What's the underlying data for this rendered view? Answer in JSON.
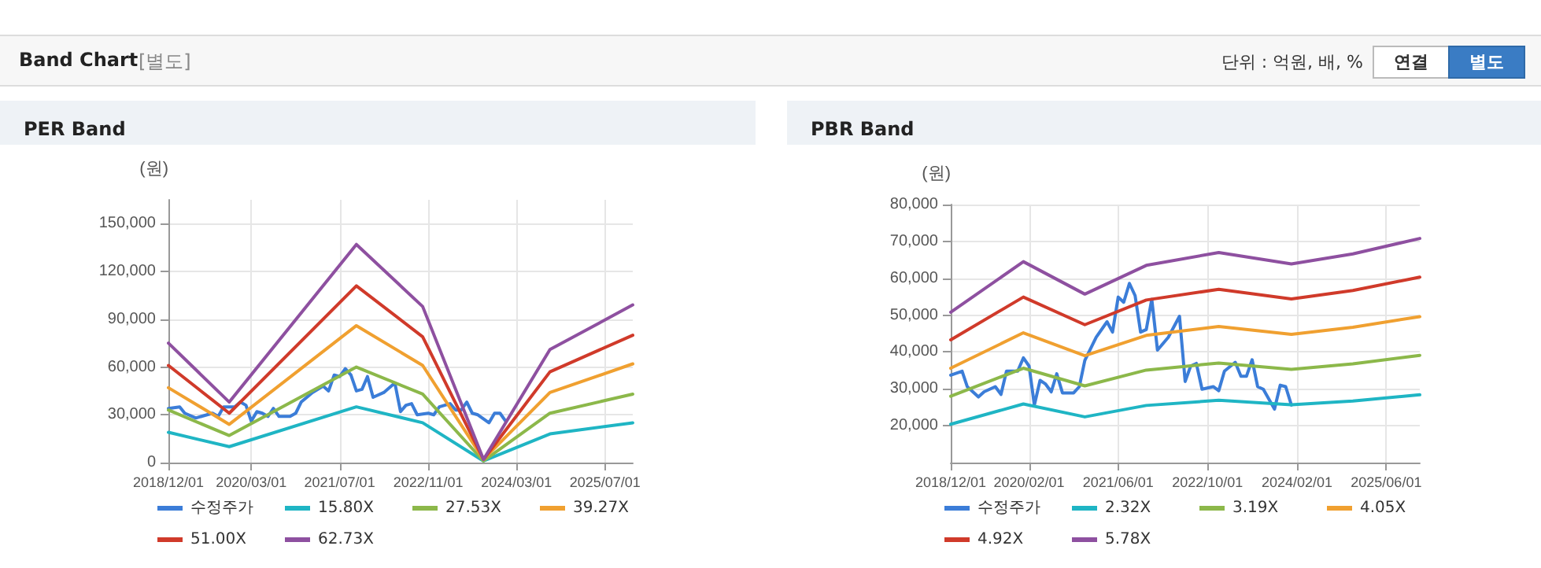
{
  "chart_data": [
    {
      "type": "line",
      "title": "PER Band",
      "ylabel": "(원)",
      "annotations": [
        "Band Chart",
        "[별도]",
        "단위 : 억원, 배, %",
        "연결",
        "별도"
      ],
      "xlim": [
        "2018-12-01",
        "2025-12-01"
      ],
      "xticks": [
        {
          "value": "2018-12-01",
          "label": "2018/12/01"
        },
        {
          "value": "2020-03-01",
          "label": "2020/03/01"
        },
        {
          "value": "2021-07-01",
          "label": "2021/07/01"
        },
        {
          "value": "2022-11-01",
          "label": "2022/11/01"
        },
        {
          "value": "2024-03-01",
          "label": "2024/03/01"
        },
        {
          "value": "2025-07-01",
          "label": "2025/07/01"
        }
      ],
      "ylim": [
        0,
        165000
      ],
      "yticks": [
        0,
        {
          "value": 30000,
          "label": "30,000"
        },
        {
          "value": 60000,
          "label": "60,000"
        },
        {
          "value": 90000,
          "label": "90,000"
        },
        {
          "value": 120000,
          "label": "120,000"
        },
        {
          "value": 150000,
          "label": "150,000"
        }
      ],
      "grid": true,
      "legend": "bottom",
      "series": [
        {
          "name": "수정주가",
          "color": "#3b7dd8",
          "x": [
            "2018-12",
            "2019-02",
            "2019-03",
            "2019-05",
            "2019-06",
            "2019-08",
            "2019-09",
            "2019-10",
            "2019-12",
            "2020-01",
            "2020-02",
            "2020-03",
            "2020-04",
            "2020-05",
            "2020-06",
            "2020-07",
            "2020-08",
            "2020-10",
            "2020-11",
            "2020-12",
            "2021-02",
            "2021-04",
            "2021-05",
            "2021-06",
            "2021-07",
            "2021-08",
            "2021-09",
            "2021-10",
            "2021-11",
            "2021-12",
            "2022-01",
            "2022-03",
            "2022-05",
            "2022-06",
            "2022-07",
            "2022-08",
            "2022-09",
            "2022-11",
            "2022-12",
            "2023-01",
            "2023-03",
            "2023-04",
            "2023-05",
            "2023-06",
            "2023-07",
            "2023-08",
            "2023-10",
            "2023-11",
            "2023-12",
            "2024-01"
          ],
          "values": [
            34000,
            35000,
            31000,
            28000,
            29000,
            31000,
            29000,
            35000,
            35000,
            38000,
            36000,
            26000,
            32000,
            31000,
            29000,
            34000,
            29000,
            29000,
            31000,
            38000,
            44000,
            48000,
            45000,
            55000,
            54000,
            59000,
            55000,
            45000,
            46000,
            54000,
            41000,
            44000,
            50000,
            32000,
            36000,
            37000,
            30000,
            31000,
            30000,
            35000,
            37000,
            33000,
            33000,
            38000,
            31000,
            30000,
            25000,
            31000,
            31000,
            26000
          ]
        },
        {
          "name": "15.80X",
          "color": "#1fb5c4",
          "x": [
            "2018-12",
            "2019-11",
            "2021-10",
            "2022-10",
            "2023-09",
            "2024-09",
            "2025-12"
          ],
          "values": [
            19000,
            10000,
            35000,
            25000,
            1000,
            18000,
            25000
          ]
        },
        {
          "name": "27.53X",
          "color": "#8cb84a",
          "x": [
            "2018-12",
            "2019-11",
            "2021-10",
            "2022-10",
            "2023-09",
            "2024-09",
            "2025-12"
          ],
          "values": [
            33000,
            17000,
            60000,
            43000,
            1000,
            31000,
            43000
          ]
        },
        {
          "name": "39.27X",
          "color": "#f0a030",
          "x": [
            "2018-12",
            "2019-11",
            "2021-10",
            "2022-10",
            "2023-09",
            "2024-09",
            "2025-12"
          ],
          "values": [
            47000,
            24000,
            86000,
            61000,
            2000,
            44000,
            62000
          ]
        },
        {
          "name": "51.00X",
          "color": "#d03a2a",
          "x": [
            "2018-12",
            "2019-11",
            "2021-10",
            "2022-10",
            "2023-09",
            "2024-09",
            "2025-12"
          ],
          "values": [
            61000,
            31000,
            111000,
            79000,
            2000,
            57000,
            80000
          ]
        },
        {
          "name": "62.73X",
          "color": "#8e50a0",
          "x": [
            "2018-12",
            "2019-11",
            "2021-10",
            "2022-10",
            "2023-09",
            "2024-09",
            "2025-12"
          ],
          "values": [
            75000,
            38000,
            137000,
            98000,
            2000,
            71000,
            99000
          ]
        }
      ]
    },
    {
      "type": "line",
      "title": "PBR Band",
      "ylabel": "(원)",
      "xlim": [
        "2018-12-01",
        "2025-12-01"
      ],
      "xticks": [
        {
          "value": "2018-12-01",
          "label": "2018/12/01"
        },
        {
          "value": "2020-02-01",
          "label": "2020/02/01"
        },
        {
          "value": "2021-06-01",
          "label": "2021/06/01"
        },
        {
          "value": "2022-10-01",
          "label": "2022/10/01"
        },
        {
          "value": "2024-02-01",
          "label": "2024/02/01"
        },
        {
          "value": "2025-06-01",
          "label": "2025/06/01"
        }
      ],
      "ylim": [
        10000,
        80000
      ],
      "yticks": [
        {
          "value": 20000,
          "label": "20,000"
        },
        {
          "value": 30000,
          "label": "30,000"
        },
        {
          "value": 40000,
          "label": "40,000"
        },
        {
          "value": 50000,
          "label": "50,000"
        },
        {
          "value": 60000,
          "label": "60,000"
        },
        {
          "value": 70000,
          "label": "70,000"
        },
        {
          "value": 80000,
          "label": "80,000"
        }
      ],
      "grid": true,
      "legend": "bottom",
      "series": [
        {
          "name": "수정주가",
          "color": "#3b7dd8",
          "x": [
            "2018-12",
            "2019-02",
            "2019-03",
            "2019-05",
            "2019-06",
            "2019-08",
            "2019-09",
            "2019-10",
            "2019-12",
            "2020-01",
            "2020-02",
            "2020-03",
            "2020-04",
            "2020-05",
            "2020-06",
            "2020-07",
            "2020-08",
            "2020-10",
            "2020-11",
            "2020-12",
            "2021-02",
            "2021-04",
            "2021-05",
            "2021-06",
            "2021-07",
            "2021-08",
            "2021-09",
            "2021-10",
            "2021-11",
            "2021-12",
            "2022-01",
            "2022-03",
            "2022-05",
            "2022-06",
            "2022-07",
            "2022-08",
            "2022-09",
            "2022-11",
            "2022-12",
            "2023-01",
            "2023-03",
            "2023-04",
            "2023-05",
            "2023-06",
            "2023-07",
            "2023-08",
            "2023-10",
            "2023-11",
            "2023-12",
            "2024-01"
          ],
          "values": [
            33700,
            34800,
            30600,
            27800,
            29200,
            30600,
            28500,
            34800,
            34800,
            38400,
            36200,
            25600,
            32300,
            31300,
            29200,
            34100,
            28900,
            28900,
            30600,
            37700,
            44000,
            48200,
            45400,
            54900,
            53500,
            58600,
            55300,
            45400,
            46100,
            54300,
            40500,
            44000,
            49700,
            32000,
            36200,
            36900,
            29900,
            30600,
            29500,
            34800,
            37200,
            33400,
            33400,
            37900,
            30600,
            29900,
            24500,
            31000,
            30600,
            25600
          ]
        },
        {
          "name": "2.32X",
          "color": "#1fb5c4",
          "x": [
            "2018-12",
            "2020-01",
            "2020-12",
            "2021-11",
            "2022-12",
            "2024-01",
            "2024-12",
            "2025-12"
          ],
          "values": [
            20400,
            25900,
            22400,
            25500,
            26900,
            25700,
            26700,
            28400
          ]
        },
        {
          "name": "3.19X",
          "color": "#8cb84a",
          "x": [
            "2018-12",
            "2020-01",
            "2020-12",
            "2021-11",
            "2022-12",
            "2024-01",
            "2024-12",
            "2025-12"
          ],
          "values": [
            28000,
            35600,
            30800,
            35100,
            37000,
            35300,
            36800,
            39100
          ]
        },
        {
          "name": "4.05X",
          "color": "#f0a030",
          "x": [
            "2018-12",
            "2020-01",
            "2020-12",
            "2021-11",
            "2022-12",
            "2024-01",
            "2024-12",
            "2025-12"
          ],
          "values": [
            35600,
            45200,
            39000,
            44500,
            46900,
            44800,
            46700,
            49600
          ]
        },
        {
          "name": "4.92X",
          "color": "#d03a2a",
          "x": [
            "2018-12",
            "2020-01",
            "2020-12",
            "2021-11",
            "2022-12",
            "2024-01",
            "2024-12",
            "2025-12"
          ],
          "values": [
            43300,
            54900,
            47400,
            54100,
            57000,
            54400,
            56700,
            60300
          ]
        },
        {
          "name": "5.78X",
          "color": "#8e50a0",
          "x": [
            "2018-12",
            "2020-01",
            "2020-12",
            "2021-11",
            "2022-12",
            "2024-01",
            "2024-12",
            "2025-12"
          ],
          "values": [
            50800,
            64500,
            55700,
            63500,
            67000,
            63900,
            66600,
            70800
          ]
        }
      ]
    }
  ]
}
